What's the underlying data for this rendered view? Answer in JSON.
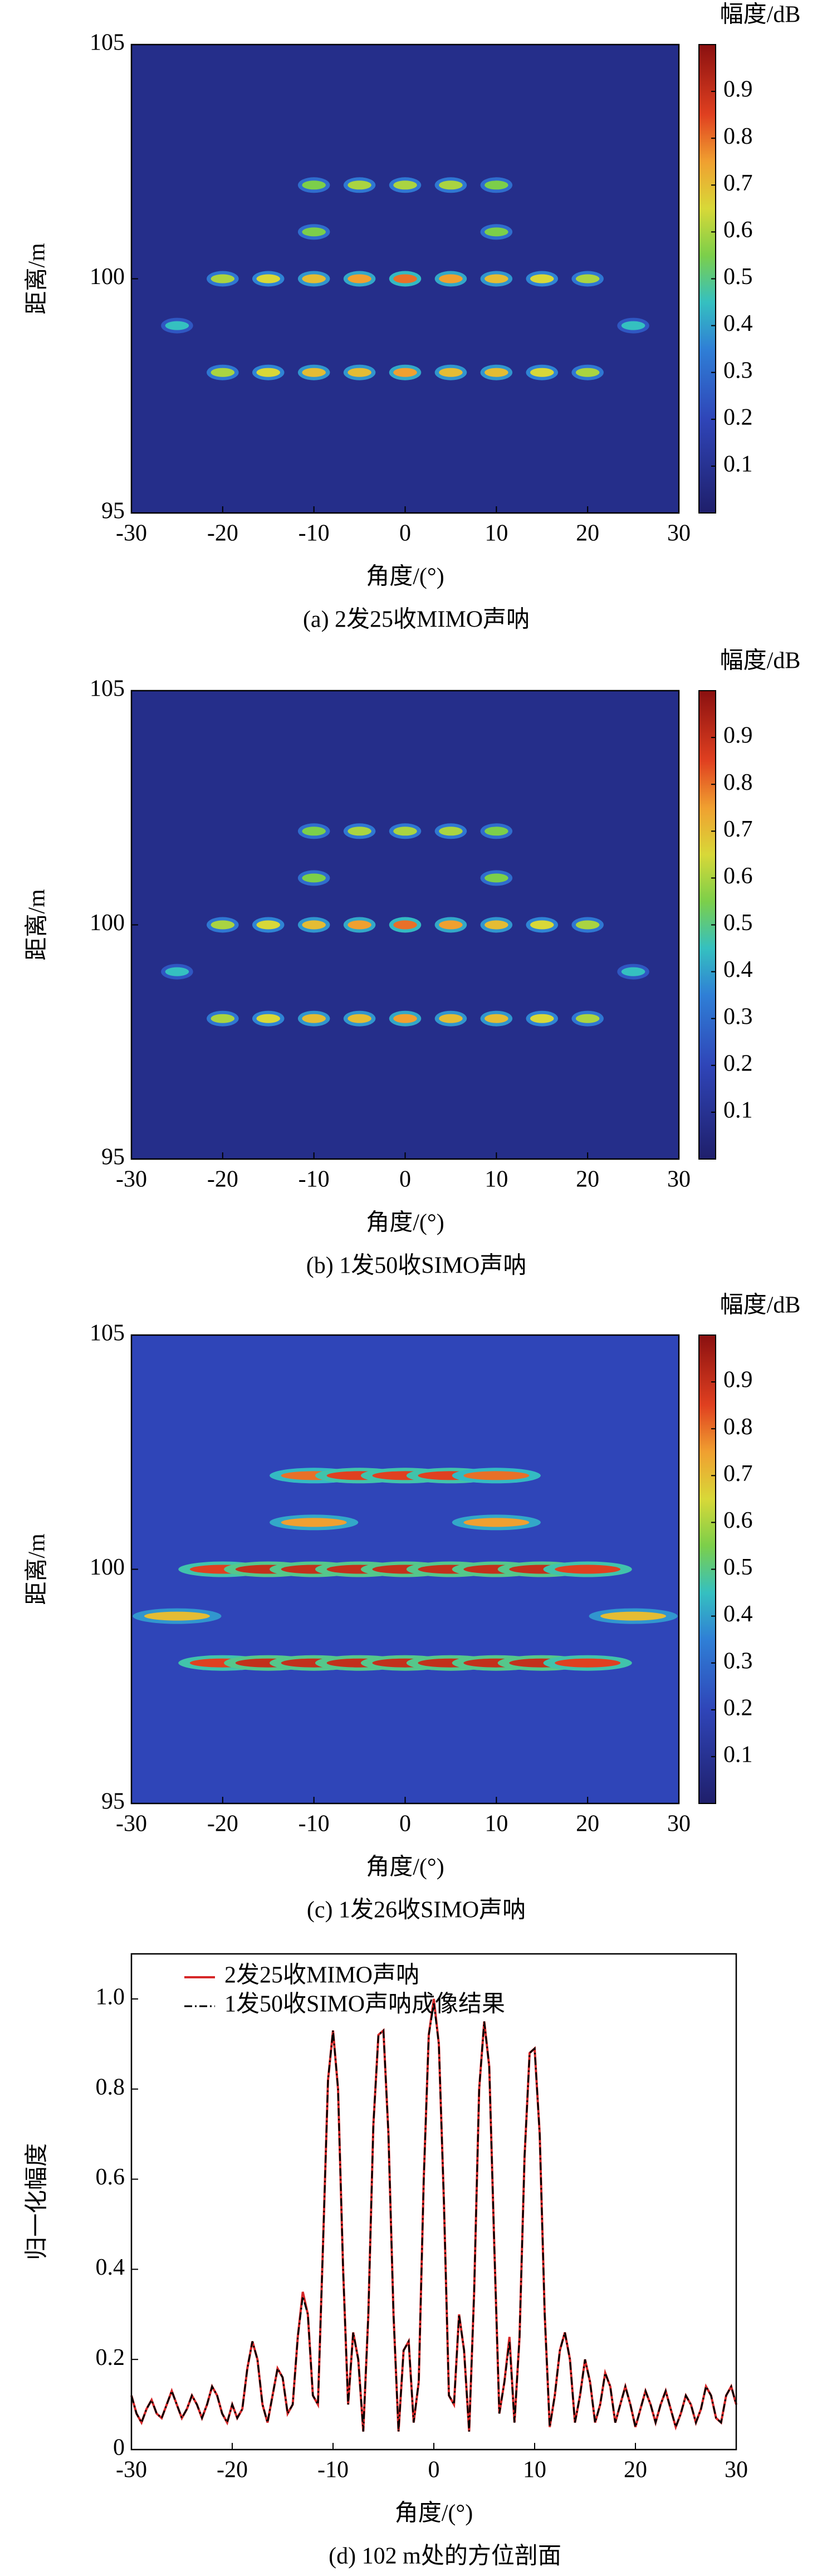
{
  "chart_data": [
    {
      "type": "heatmap",
      "caption": "(a) 2发25收MIMO声呐",
      "xlabel": "角度/(°)",
      "ylabel": "距离/m",
      "colorbar_label": "幅度/dB",
      "xlim": [
        -30,
        30
      ],
      "ylim": [
        95,
        105
      ],
      "xticks": [
        -30,
        -20,
        -10,
        0,
        10,
        20,
        30
      ],
      "yticks": [
        95,
        100,
        105
      ],
      "clim": [
        0,
        1
      ],
      "cticks": [
        0.1,
        0.2,
        0.3,
        0.4,
        0.5,
        0.6,
        0.7,
        0.8,
        0.9
      ],
      "background": 0.08,
      "targets": {
        "x": [
          -10,
          -5,
          0,
          5,
          10,
          -10,
          10,
          -20,
          -15,
          -10,
          -5,
          0,
          5,
          10,
          15,
          20,
          -25,
          25,
          -20,
          -15,
          -10,
          -5,
          0,
          5,
          10,
          15,
          20
        ],
        "y": [
          102,
          102,
          102,
          102,
          102,
          101,
          101,
          100,
          100,
          100,
          100,
          100,
          100,
          100,
          100,
          100,
          99,
          99,
          98,
          98,
          98,
          98,
          98,
          98,
          98,
          98,
          98
        ],
        "values": [
          0.55,
          0.6,
          0.6,
          0.6,
          0.55,
          0.55,
          0.55,
          0.6,
          0.65,
          0.7,
          0.75,
          0.8,
          0.75,
          0.7,
          0.65,
          0.6,
          0.45,
          0.45,
          0.6,
          0.65,
          0.7,
          0.7,
          0.75,
          0.7,
          0.7,
          0.65,
          0.6
        ]
      }
    },
    {
      "type": "heatmap",
      "caption": "(b) 1发50收SIMO声呐",
      "xlabel": "角度/(°)",
      "ylabel": "距离/m",
      "colorbar_label": "幅度/dB",
      "xlim": [
        -30,
        30
      ],
      "ylim": [
        95,
        105
      ],
      "xticks": [
        -30,
        -20,
        -10,
        0,
        10,
        20,
        30
      ],
      "yticks": [
        95,
        100,
        105
      ],
      "clim": [
        0,
        1
      ],
      "cticks": [
        0.1,
        0.2,
        0.3,
        0.4,
        0.5,
        0.6,
        0.7,
        0.8,
        0.9
      ],
      "background": 0.08,
      "targets": {
        "x": [
          -10,
          -5,
          0,
          5,
          10,
          -10,
          10,
          -20,
          -15,
          -10,
          -5,
          0,
          5,
          10,
          15,
          20,
          -25,
          25,
          -20,
          -15,
          -10,
          -5,
          0,
          5,
          10,
          15,
          20
        ],
        "y": [
          102,
          102,
          102,
          102,
          102,
          101,
          101,
          100,
          100,
          100,
          100,
          100,
          100,
          100,
          100,
          100,
          99,
          99,
          98,
          98,
          98,
          98,
          98,
          98,
          98,
          98,
          98
        ],
        "values": [
          0.55,
          0.6,
          0.6,
          0.6,
          0.55,
          0.55,
          0.55,
          0.6,
          0.65,
          0.7,
          0.75,
          0.8,
          0.75,
          0.7,
          0.65,
          0.6,
          0.45,
          0.45,
          0.6,
          0.65,
          0.7,
          0.7,
          0.75,
          0.7,
          0.7,
          0.65,
          0.6
        ]
      }
    },
    {
      "type": "heatmap",
      "caption": "(c) 1发26收SIMO声呐",
      "xlabel": "角度/(°)",
      "ylabel": "距离/m",
      "colorbar_label": "幅度/dB",
      "xlim": [
        -30,
        30
      ],
      "ylim": [
        95,
        105
      ],
      "xticks": [
        -30,
        -20,
        -10,
        0,
        10,
        20,
        30
      ],
      "yticks": [
        95,
        100,
        105
      ],
      "clim": [
        0,
        1
      ],
      "cticks": [
        0.1,
        0.2,
        0.3,
        0.4,
        0.5,
        0.6,
        0.7,
        0.8,
        0.9
      ],
      "background": 0.2,
      "targets": {
        "x": [
          -10,
          -5,
          0,
          5,
          10,
          -10,
          10,
          -20,
          -15,
          -10,
          -5,
          0,
          5,
          10,
          15,
          20,
          -25,
          25,
          -20,
          -15,
          -10,
          -5,
          0,
          5,
          10,
          15,
          20
        ],
        "y": [
          102,
          102,
          102,
          102,
          102,
          101,
          101,
          100,
          100,
          100,
          100,
          100,
          100,
          100,
          100,
          100,
          99,
          99,
          98,
          98,
          98,
          98,
          98,
          98,
          98,
          98,
          98
        ],
        "values": [
          0.8,
          0.85,
          0.85,
          0.85,
          0.8,
          0.75,
          0.75,
          0.85,
          0.9,
          0.9,
          0.9,
          0.9,
          0.9,
          0.9,
          0.9,
          0.85,
          0.7,
          0.7,
          0.85,
          0.9,
          0.9,
          0.9,
          0.9,
          0.9,
          0.9,
          0.9,
          0.85
        ]
      }
    },
    {
      "type": "line",
      "caption": "(d) 102 m处的方位剖面",
      "xlabel": "角度/(°)",
      "ylabel": "归一化幅度",
      "legend": "upper left",
      "xlim": [
        -30,
        30
      ],
      "ylim": [
        0,
        1.1
      ],
      "xticks": [
        -30,
        -20,
        -10,
        0,
        10,
        20,
        30
      ],
      "yticks": [
        0,
        0.2,
        0.4,
        0.6,
        0.8,
        {
          "value": 1,
          "label": "1.0"
        }
      ],
      "x": [
        -30,
        -29.5,
        -29,
        -28.5,
        -28,
        -27.5,
        -27,
        -26.5,
        -26,
        -25.5,
        -25,
        -24.5,
        -24,
        -23.5,
        -23,
        -22.5,
        -22,
        -21.5,
        -21,
        -20.5,
        -20,
        -19.5,
        -19,
        -18.5,
        -18,
        -17.5,
        -17,
        -16.5,
        -16,
        -15.5,
        -15,
        -14.5,
        -14,
        -13.5,
        -13,
        -12.5,
        -12,
        -11.5,
        -11,
        -10.5,
        -10,
        -9.5,
        -9,
        -8.5,
        -8,
        -7.5,
        -7,
        -6.5,
        -6,
        -5.5,
        -5,
        -4.5,
        -4,
        -3.5,
        -3,
        -2.5,
        -2,
        -1.5,
        -1,
        -0.5,
        0,
        0.5,
        1,
        1.5,
        2,
        2.5,
        3,
        3.5,
        4,
        4.5,
        5,
        5.5,
        6,
        6.5,
        7,
        7.5,
        8,
        8.5,
        9,
        9.5,
        10,
        10.5,
        11,
        11.5,
        12,
        12.5,
        13,
        13.5,
        14,
        14.5,
        15,
        15.5,
        16,
        16.5,
        17,
        17.5,
        18,
        18.5,
        19,
        19.5,
        20,
        20.5,
        21,
        21.5,
        22,
        22.5,
        23,
        23.5,
        24,
        24.5,
        25,
        25.5,
        26,
        26.5,
        27,
        27.5,
        28,
        28.5,
        29,
        29.5,
        30
      ],
      "series": [
        {
          "name": "2发25收MIMO声呐",
          "color": "#d62728",
          "values": [
            0.12,
            0.08,
            0.06,
            0.09,
            0.11,
            0.08,
            0.07,
            0.1,
            0.13,
            0.1,
            0.07,
            0.09,
            0.12,
            0.1,
            0.07,
            0.1,
            0.14,
            0.12,
            0.08,
            0.06,
            0.1,
            0.07,
            0.09,
            0.18,
            0.24,
            0.2,
            0.1,
            0.06,
            0.12,
            0.18,
            0.16,
            0.08,
            0.1,
            0.25,
            0.35,
            0.3,
            0.12,
            0.1,
            0.45,
            0.82,
            0.93,
            0.8,
            0.4,
            0.1,
            0.26,
            0.2,
            0.04,
            0.3,
            0.72,
            0.92,
            0.93,
            0.7,
            0.3,
            0.04,
            0.22,
            0.24,
            0.06,
            0.15,
            0.6,
            0.92,
            1.0,
            0.9,
            0.55,
            0.12,
            0.1,
            0.3,
            0.22,
            0.04,
            0.35,
            0.8,
            0.95,
            0.85,
            0.45,
            0.08,
            0.15,
            0.25,
            0.06,
            0.25,
            0.65,
            0.88,
            0.89,
            0.7,
            0.3,
            0.05,
            0.12,
            0.22,
            0.26,
            0.2,
            0.06,
            0.12,
            0.2,
            0.15,
            0.06,
            0.1,
            0.17,
            0.14,
            0.06,
            0.1,
            0.14,
            0.1,
            0.05,
            0.09,
            0.13,
            0.1,
            0.06,
            0.1,
            0.13,
            0.09,
            0.05,
            0.08,
            0.12,
            0.1,
            0.06,
            0.09,
            0.14,
            0.12,
            0.07,
            0.06,
            0.12,
            0.14,
            0.1
          ]
        },
        {
          "name": "1发50收SIMO声呐成像结果",
          "color": "#000000",
          "values": [
            0.12,
            0.08,
            0.06,
            0.09,
            0.11,
            0.08,
            0.07,
            0.1,
            0.13,
            0.1,
            0.07,
            0.09,
            0.12,
            0.1,
            0.07,
            0.1,
            0.14,
            0.12,
            0.08,
            0.06,
            0.1,
            0.07,
            0.09,
            0.18,
            0.24,
            0.2,
            0.1,
            0.06,
            0.12,
            0.18,
            0.16,
            0.08,
            0.1,
            0.25,
            0.34,
            0.3,
            0.12,
            0.1,
            0.45,
            0.82,
            0.93,
            0.8,
            0.4,
            0.1,
            0.26,
            0.2,
            0.04,
            0.3,
            0.72,
            0.92,
            0.93,
            0.7,
            0.3,
            0.04,
            0.22,
            0.24,
            0.06,
            0.15,
            0.6,
            0.92,
            0.99,
            0.9,
            0.55,
            0.12,
            0.1,
            0.3,
            0.22,
            0.04,
            0.35,
            0.8,
            0.95,
            0.85,
            0.45,
            0.08,
            0.15,
            0.24,
            0.06,
            0.25,
            0.65,
            0.88,
            0.89,
            0.7,
            0.3,
            0.05,
            0.12,
            0.22,
            0.26,
            0.2,
            0.06,
            0.12,
            0.2,
            0.15,
            0.06,
            0.1,
            0.17,
            0.14,
            0.06,
            0.1,
            0.14,
            0.1,
            0.05,
            0.09,
            0.13,
            0.1,
            0.06,
            0.1,
            0.13,
            0.09,
            0.05,
            0.08,
            0.12,
            0.1,
            0.06,
            0.09,
            0.14,
            0.12,
            0.07,
            0.06,
            0.12,
            0.14,
            0.1
          ]
        }
      ]
    }
  ]
}
